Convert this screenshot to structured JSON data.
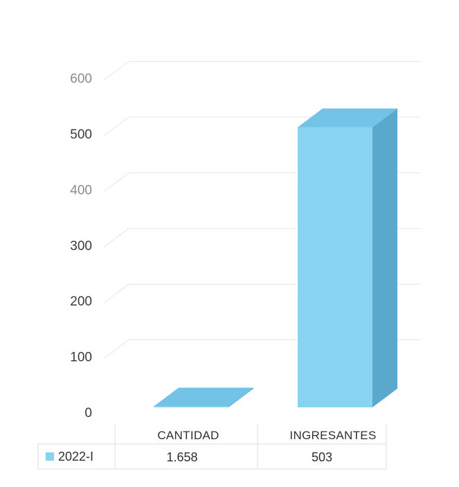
{
  "chart_data": {
    "type": "bar",
    "categories": [
      "CANTIDAD",
      "INGRESANTES"
    ],
    "series": [
      {
        "name": "2022-I",
        "values": [
          1.658,
          503
        ],
        "labels": [
          "1.658",
          "503"
        ]
      }
    ],
    "yticks": [
      "0",
      "100",
      "200",
      "300",
      "400",
      "500",
      "600"
    ],
    "ylim": [
      0,
      600
    ],
    "grid": true,
    "legend": "data-table",
    "colors": {
      "front": "#87d3f0",
      "top": "#72c3e6",
      "side": "#5aa9cc",
      "grid": "#e6e6e6"
    }
  }
}
